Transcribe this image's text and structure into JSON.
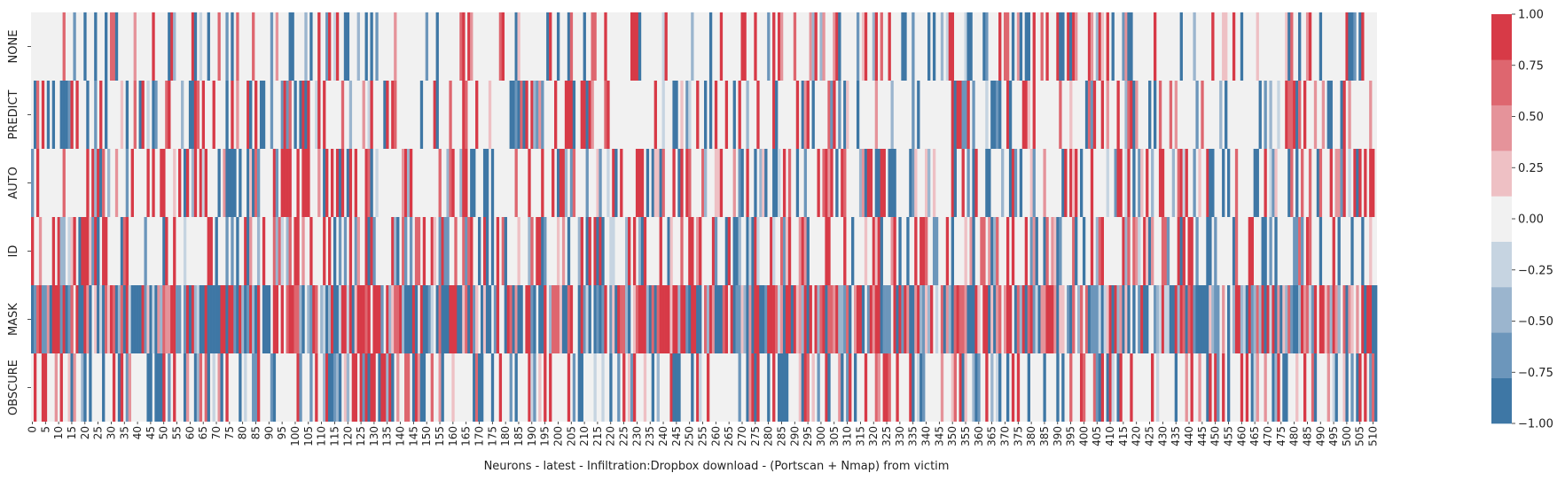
{
  "chart_data": {
    "type": "heatmap",
    "title": "",
    "xlabel": "Neurons - latest - Infiltration:Dropbox download - (Portscan + Nmap) from victim",
    "ylabel": "",
    "rows": [
      "NONE",
      "PREDICT",
      "AUTO",
      "ID",
      "MASK",
      "OBSCURE"
    ],
    "n_columns": 512,
    "x_tick_labels": [
      "0",
      "5",
      "10",
      "15",
      "20",
      "25",
      "30",
      "35",
      "40",
      "45",
      "50",
      "55",
      "60",
      "65",
      "70",
      "75",
      "80",
      "85",
      "90",
      "95",
      "100",
      "105",
      "110",
      "115",
      "120",
      "125",
      "130",
      "135",
      "140",
      "145",
      "150",
      "155",
      "160",
      "165",
      "170",
      "175",
      "180",
      "185",
      "190",
      "195",
      "200",
      "205",
      "210",
      "215",
      "220",
      "225",
      "230",
      "235",
      "240",
      "245",
      "250",
      "255",
      "260",
      "265",
      "270",
      "275",
      "280",
      "285",
      "290",
      "295",
      "300",
      "305",
      "310",
      "315",
      "320",
      "325",
      "330",
      "335",
      "340",
      "345",
      "350",
      "355",
      "360",
      "365",
      "370",
      "375",
      "380",
      "385",
      "390",
      "395",
      "400",
      "405",
      "410",
      "415",
      "420",
      "425",
      "430",
      "435",
      "440",
      "445",
      "450",
      "455",
      "460",
      "465",
      "470",
      "475",
      "480",
      "485",
      "490",
      "495",
      "500",
      "505",
      "510"
    ],
    "value_levels": [
      -1.0,
      -0.75,
      -0.5,
      -0.25,
      0.0,
      0.25,
      0.5,
      0.75,
      1.0
    ],
    "colorbar": {
      "vmin": -1.0,
      "vmax": 1.0,
      "ticks": [
        "1.00",
        "0.75",
        "0.50",
        "0.25",
        "0.00",
        "−0.25",
        "−0.50",
        "−0.75",
        "−1.00"
      ],
      "colors": [
        "#3e77a5",
        "#6c96bb",
        "#9bb5ce",
        "#c6d4e1",
        "#f1f1f1",
        "#eec0c4",
        "#e5939a",
        "#de666f",
        "#d73a47"
      ]
    },
    "row_profiles": [
      {
        "row": "NONE",
        "nonzero_fraction": 0.3,
        "positive_share": 0.55
      },
      {
        "row": "PREDICT",
        "nonzero_fraction": 0.4,
        "positive_share": 0.5
      },
      {
        "row": "AUTO",
        "nonzero_fraction": 0.45,
        "positive_share": 0.55
      },
      {
        "row": "ID",
        "nonzero_fraction": 0.45,
        "positive_share": 0.55
      },
      {
        "row": "MASK",
        "nonzero_fraction": 0.9,
        "positive_share": 0.55
      },
      {
        "row": "OBSCURE",
        "nonzero_fraction": 0.45,
        "positive_share": 0.55
      }
    ]
  }
}
